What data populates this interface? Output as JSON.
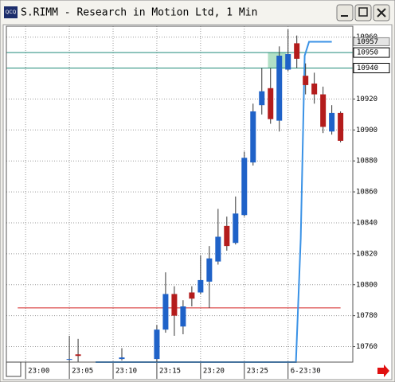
{
  "window": {
    "icon": "QCQ",
    "title": "S.RIMM - Research in Motion Ltd, 1 Min"
  },
  "chart_data": {
    "type": "candlestick",
    "x": [
      5,
      6,
      11,
      15,
      16,
      17,
      18,
      19,
      20,
      21,
      22,
      23,
      24,
      25,
      26,
      27,
      28,
      29,
      30,
      31,
      32,
      33,
      34,
      35,
      36
    ],
    "open": [
      10752,
      10755,
      10752,
      10752,
      10771,
      10794,
      10773,
      10795,
      10795,
      10802,
      10815,
      10838,
      10827,
      10845,
      10879,
      10916,
      10927,
      10906,
      10939,
      10956,
      10935,
      10930,
      10923,
      10899,
      10911
    ],
    "high": [
      10767,
      10765,
      10759,
      10774,
      10808,
      10799,
      10790,
      10799,
      10819,
      10825,
      10849,
      10844,
      10857,
      10886,
      10917,
      10940,
      10940,
      10954,
      10965,
      10961,
      10943,
      10937,
      10928,
      10916,
      10912
    ],
    "low": [
      10750,
      10750,
      10751,
      10750,
      10769,
      10767,
      10768,
      10786,
      10794,
      10785,
      10813,
      10822,
      10826,
      10844,
      10877,
      10910,
      10904,
      10899,
      10938,
      10940,
      10923,
      10917,
      10898,
      10897,
      10892
    ],
    "close": [
      10752,
      10754,
      10753,
      10771,
      10794,
      10780,
      10786,
      10791,
      10803,
      10817,
      10831,
      10825,
      10846,
      10882,
      10912,
      10925,
      10907,
      10948,
      10949,
      10946,
      10929,
      10923,
      10902,
      10911,
      10893
    ],
    "up_color": "#1f62c8",
    "down_color": "#b41c1c",
    "xlim": [
      -2.2,
      37.4
    ],
    "xticks": [
      {
        "value": 0,
        "label": "23:00"
      },
      {
        "value": 5,
        "label": "23:05"
      },
      {
        "value": 10,
        "label": "23:10"
      },
      {
        "value": 15,
        "label": "23:15"
      },
      {
        "value": 20,
        "label": "23:20"
      },
      {
        "value": 25,
        "label": "23:25"
      },
      {
        "value": 30,
        "label": "6-23:30"
      }
    ],
    "ylim": [
      10750,
      10967
    ],
    "yticks": [
      10760,
      10780,
      10800,
      10820,
      10840,
      10860,
      10880,
      10900,
      10920,
      10940,
      10960
    ],
    "grid": true,
    "levels": [
      {
        "value": 10950,
        "color": "#1e8a78",
        "boxed": true
      },
      {
        "value": 10940,
        "color": "#1e8a78",
        "boxed": true
      },
      {
        "value": 10785,
        "color": "#d42020",
        "boxed": false
      }
    ],
    "zone": {
      "x": [
        27.7,
        29.8
      ],
      "y": [
        10940,
        10950
      ],
      "color": "#9fd8b8"
    },
    "indicator": {
      "x": [
        8,
        30.9,
        31.45,
        31.9,
        32.4,
        35
      ],
      "values": [
        10750,
        10750,
        10830,
        10948,
        10957,
        10957
      ],
      "color": "#3a92e6"
    }
  }
}
